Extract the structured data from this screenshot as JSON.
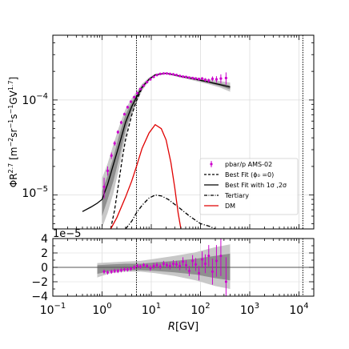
{
  "chart_data": [
    {
      "panel": "main",
      "type": "line",
      "xlabel_pre": "R",
      "xlabel_unit": "[GV]",
      "x_scale": "log",
      "y_scale": "log",
      "xlim": [
        0.1,
        20000
      ],
      "ylim": [
        4.4e-06,
        0.00048
      ],
      "ylabel_parts": [
        "ΦR",
        "2.7",
        " [m",
        "−2",
        "sr",
        "−1",
        "s",
        "−1",
        "GV",
        "1.7",
        "]"
      ],
      "y_ticks": [
        {
          "label_base": "10",
          "label_exp": "−4",
          "value": 0.0001
        },
        {
          "label_base": "10",
          "label_exp": "−5",
          "value": 1e-05
        }
      ],
      "vertical_lines": [
        5.0,
        12000
      ],
      "grid": true,
      "legend_position": "lower-right",
      "legend": [
        {
          "label": "pbar/p AMS-02",
          "style": "errorbar",
          "color": "#cc00cc"
        },
        {
          "label": "Best Fit (ϕ₀ =0)",
          "style": "dashed",
          "color": "#000000"
        },
        {
          "label": "Best Fit with 1σ ,2σ",
          "style": "solid",
          "color": "#000000"
        },
        {
          "label": "Tertiary",
          "style": "dashdot",
          "color": "#000000"
        },
        {
          "label": "DM",
          "style": "solid",
          "color": "#e00000"
        }
      ],
      "band_2sigma": {
        "x": [
          1.0,
          1.3,
          1.7,
          2.2,
          3.0,
          4.0,
          5.0,
          6.5,
          9.0,
          12,
          20,
          40,
          80,
          150,
          250,
          400
        ],
        "lower": [
          4.5e-06,
          6.5e-06,
          1.05e-05,
          1.9e-05,
          4.1e-05,
          6.8e-05,
          9.3e-05,
          0.000125,
          0.000158,
          0.00018,
          0.000188,
          0.000172,
          0.000158,
          0.000146,
          0.000135,
          0.000122
        ],
        "upper": [
          1.5e-05,
          2.15e-05,
          3.4e-05,
          5.2e-05,
          8e-05,
          0.000104,
          0.000122,
          0.000148,
          0.000172,
          0.000188,
          0.000194,
          0.000182,
          0.000173,
          0.000165,
          0.000158,
          0.000152
        ]
      },
      "band_1sigma": {
        "x": [
          1.0,
          1.3,
          1.7,
          2.2,
          3.0,
          4.0,
          5.0,
          6.5,
          9.0,
          12,
          20,
          40,
          80,
          150,
          250,
          400
        ],
        "lower": [
          6e-06,
          9e-06,
          1.4e-05,
          2.4e-05,
          4.8e-05,
          7.6e-05,
          0.0001,
          0.000131,
          0.000162,
          0.000183,
          0.00019,
          0.000175,
          0.000162,
          0.00015,
          0.00014,
          0.000129
        ],
        "upper": [
          1.1e-05,
          1.6e-05,
          2.5e-05,
          4.2e-05,
          7e-05,
          9.5e-05,
          0.000115,
          0.000142,
          0.000168,
          0.000186,
          0.000192,
          0.000179,
          0.000168,
          0.000158,
          0.00015,
          0.000142
        ]
      },
      "series": [
        {
          "name": "Best Fit with 1σ ,2σ",
          "style": "solid",
          "color": "#000000",
          "x": [
            0.4,
            0.6,
            0.8,
            1.0,
            1.3,
            1.7,
            2.2,
            3.0,
            4.0,
            5.0,
            6.5,
            9.0,
            12,
            20,
            40,
            80,
            150,
            250,
            400
          ],
          "y": [
            6.7e-06,
            7.5e-06,
            8.2e-06,
            9e-06,
            1.3e-05,
            2.1e-05,
            3.3e-05,
            5.8e-05,
            8.5e-05,
            0.000107,
            0.000137,
            0.000165,
            0.000184,
            0.000191,
            0.000177,
            0.000165,
            0.000154,
            0.000145,
            0.000137
          ]
        },
        {
          "name": "Best Fit (ϕ₀ =0)",
          "style": "dashed",
          "color": "#000000",
          "x": [
            1.5,
            1.8,
            2.2,
            2.6,
            3.0,
            4.0,
            5.0,
            6.5,
            9.0,
            12
          ],
          "y": [
            4.4e-06,
            7e-06,
            1.4e-05,
            2.5e-05,
            3.8e-05,
            6.9e-05,
            9.8e-05,
            0.000134,
            0.000166,
            0.000184
          ]
        },
        {
          "name": "Tertiary",
          "style": "dashdot",
          "color": "#000000",
          "x": [
            3.0,
            4.0,
            5.0,
            6.5,
            9.0,
            12,
            16,
            22,
            35,
            60,
            100,
            150,
            200
          ],
          "y": [
            4.4e-06,
            5.3e-06,
            6.5e-06,
            7.8e-06,
            9.3e-06,
            1e-05,
            9.8e-06,
            9e-06,
            7.5e-06,
            6e-06,
            5e-06,
            4.7e-06,
            4.4e-06
          ]
        },
        {
          "name": "DM",
          "style": "solid",
          "color": "#e00000",
          "x": [
            1.5,
            2.0,
            3.0,
            4.0,
            5.0,
            6.5,
            9.0,
            12,
            16,
            20,
            25,
            30,
            35,
            40
          ],
          "y": [
            4.4e-06,
            5.8e-06,
            9.5e-06,
            1.4e-05,
            2e-05,
            3.1e-05,
            4.5e-05,
            5.5e-05,
            5e-05,
            3.8e-05,
            2.2e-05,
            1.2e-05,
            6.5e-06,
            4.4e-06
          ]
        }
      ],
      "data_points": {
        "name": "pbar/p AMS-02",
        "color": "#cc00cc",
        "x": [
          1.1,
          1.3,
          1.55,
          1.8,
          2.1,
          2.45,
          2.85,
          3.3,
          3.85,
          4.5,
          5.2,
          6.0,
          7.0,
          8.2,
          9.6,
          11.2,
          13,
          15.2,
          17.8,
          20.7,
          24,
          28,
          32.5,
          38,
          44,
          51,
          59,
          69,
          80,
          93,
          108,
          125,
          147,
          175,
          211,
          259,
          330
        ],
        "y": [
          1.22e-05,
          1.8e-05,
          2.6e-05,
          3.5e-05,
          4.6e-05,
          5.8e-05,
          7.1e-05,
          8.4e-05,
          9.6e-05,
          0.000107,
          0.000118,
          0.00013,
          0.000142,
          0.000154,
          0.000165,
          0.000175,
          0.000183,
          0.000188,
          0.00019,
          0.00019,
          0.000188,
          0.000186,
          0.000183,
          0.000179,
          0.000176,
          0.000175,
          0.000172,
          0.00017,
          0.000168,
          0.000166,
          0.000168,
          0.000163,
          0.00016,
          0.000167,
          0.000165,
          0.000168,
          0.00017
        ],
        "err": [
          3e-06,
          2e-06,
          2e-06,
          2e-06,
          2e-06,
          2.5e-06,
          2.5e-06,
          3e-06,
          3e-06,
          3e-06,
          3e-06,
          3e-06,
          3e-06,
          3e-06,
          3e-06,
          3e-06,
          3e-06,
          3e-06,
          3e-06,
          3e-06,
          3e-06,
          3e-06,
          3e-06,
          3.5e-06,
          3.5e-06,
          4e-06,
          4e-06,
          4.5e-06,
          5e-06,
          5.5e-06,
          6e-06,
          7e-06,
          8e-06,
          1e-05,
          1.3e-05,
          1.8e-05,
          2.5e-05
        ]
      }
    },
    {
      "panel": "residuals",
      "type": "scatter",
      "x_scale": "log",
      "xlim": [
        0.1,
        20000
      ],
      "ylim": [
        -4,
        4
      ],
      "offset_label": "1e−5",
      "y_ticks": [
        "4",
        "2",
        "0",
        "−2",
        "−4"
      ],
      "x_ticks": [
        {
          "base": "10",
          "exp": "−1",
          "value": 0.1
        },
        {
          "base": "10",
          "exp": "0",
          "value": 1
        },
        {
          "base": "10",
          "exp": "1",
          "value": 10
        },
        {
          "base": "10",
          "exp": "2",
          "value": 100
        },
        {
          "base": "10",
          "exp": "3",
          "value": 1000
        },
        {
          "base": "10",
          "exp": "4",
          "value": 10000
        }
      ],
      "band_2sigma": {
        "x": [
          0.8,
          1.5,
          3.0,
          6.0,
          12,
          30,
          80,
          200,
          400
        ],
        "lower": [
          -1.4,
          -0.8,
          -0.6,
          -0.6,
          -0.8,
          -1.2,
          -1.8,
          -2.6,
          -3.0
        ],
        "upper": [
          0.6,
          0.7,
          0.8,
          0.9,
          1.2,
          1.6,
          2.1,
          2.8,
          3.2
        ]
      },
      "band_1sigma": {
        "x": [
          0.8,
          1.5,
          3.0,
          6.0,
          12,
          30,
          80,
          200,
          400
        ],
        "lower": [
          -0.9,
          -0.5,
          -0.4,
          -0.4,
          -0.5,
          -0.7,
          -1.0,
          -1.5,
          -1.8
        ],
        "upper": [
          0.3,
          0.4,
          0.5,
          0.5,
          0.7,
          0.9,
          1.2,
          1.6,
          1.9
        ]
      },
      "points": {
        "x": [
          1.1,
          1.3,
          1.55,
          1.8,
          2.1,
          2.45,
          2.85,
          3.3,
          3.85,
          4.5,
          5.2,
          6.0,
          7.0,
          8.2,
          9.6,
          11.2,
          13,
          15.2,
          17.8,
          20.7,
          24,
          28,
          32.5,
          38,
          44,
          51,
          59,
          69,
          80,
          93,
          108,
          125,
          147,
          175,
          211,
          259,
          330
        ],
        "y": [
          -0.6,
          -0.7,
          -0.6,
          -0.5,
          -0.5,
          -0.4,
          -0.3,
          -0.3,
          -0.2,
          0.0,
          0.2,
          0.1,
          0.3,
          0.2,
          -0.1,
          0.2,
          0.3,
          0.1,
          0.5,
          0.3,
          0.2,
          0.5,
          0.4,
          0.2,
          0.8,
          0.3,
          -0.5,
          0.9,
          0.4,
          -0.8,
          1.1,
          0.5,
          1.6,
          -0.6,
          0.9,
          1.6,
          -2.0
        ],
        "err": [
          0.3,
          0.3,
          0.3,
          0.3,
          0.3,
          0.3,
          0.3,
          0.3,
          0.3,
          0.3,
          0.3,
          0.3,
          0.3,
          0.3,
          0.4,
          0.4,
          0.4,
          0.4,
          0.4,
          0.4,
          0.5,
          0.5,
          0.5,
          0.6,
          0.6,
          0.7,
          0.7,
          0.8,
          0.9,
          1.0,
          1.1,
          1.3,
          1.5,
          1.8,
          2.2,
          2.8,
          3.4
        ]
      }
    }
  ]
}
